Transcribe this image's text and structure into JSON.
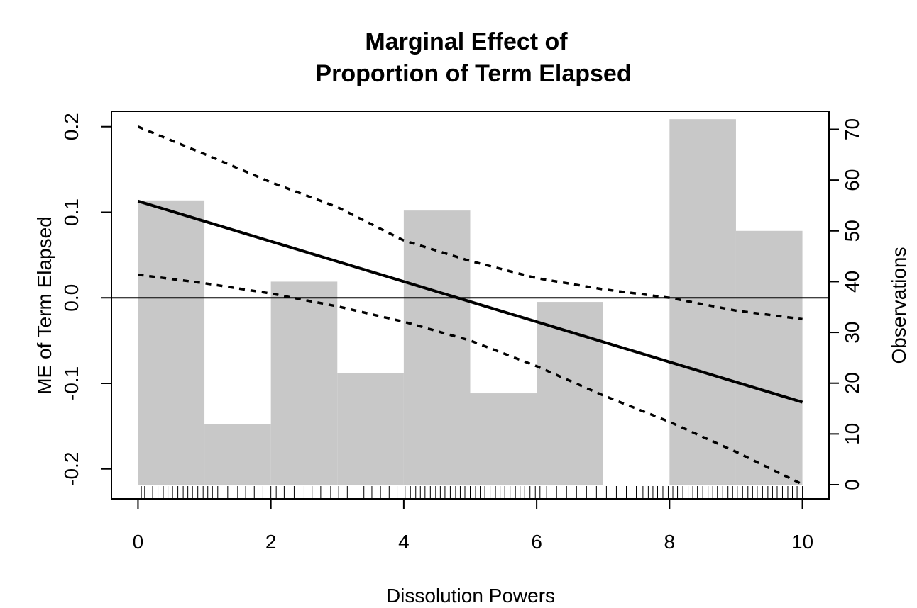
{
  "chart_data": {
    "type": "line",
    "title_lines": [
      "Marginal Effect of",
      "Proportion of Term Elapsed"
    ],
    "xlabel": "Dissolution Powers",
    "ylabel": "ME of Term Elapsed",
    "y2label": "Observations",
    "xlim": [
      -0.4,
      10.4
    ],
    "ylim": [
      -0.235,
      0.218
    ],
    "y2lim": [
      0,
      72
    ],
    "x_ticks": [
      0,
      2,
      4,
      6,
      8,
      10
    ],
    "y_ticks": [
      -0.2,
      -0.1,
      0.0,
      0.1,
      0.2
    ],
    "y2_ticks": [
      0,
      10,
      20,
      30,
      40,
      50,
      60,
      70
    ],
    "x_tick_labels": [
      "0",
      "2",
      "4",
      "6",
      "8",
      "10"
    ],
    "y_tick_labels": [
      "-0.2",
      "-0.1",
      "0.0",
      "0.1",
      "0.2"
    ],
    "y2_tick_labels": [
      "0",
      "10",
      "20",
      "30",
      "40",
      "50",
      "60",
      "70"
    ],
    "histogram": {
      "name": "Observations",
      "bins": [
        [
          0,
          1
        ],
        [
          1,
          2
        ],
        [
          2,
          3
        ],
        [
          3,
          4
        ],
        [
          4,
          5
        ],
        [
          5,
          6
        ],
        [
          6,
          7
        ],
        [
          7,
          8
        ],
        [
          8,
          9
        ],
        [
          9,
          10
        ]
      ],
      "counts": [
        56,
        12,
        40,
        22,
        54,
        18,
        36,
        0,
        72,
        50
      ],
      "color": "#c8c8c8"
    },
    "series": [
      {
        "role": "estimate",
        "style": "solid",
        "x": [
          0,
          10
        ],
        "y": [
          0.113,
          -0.122
        ]
      },
      {
        "role": "upper",
        "style": "dashed",
        "x": [
          0,
          1,
          2,
          3,
          4,
          5,
          6,
          7,
          8,
          9,
          10
        ],
        "y": [
          0.2,
          0.168,
          0.135,
          0.106,
          0.067,
          0.043,
          0.023,
          0.01,
          0.0,
          -0.015,
          -0.025
        ]
      },
      {
        "role": "lower",
        "style": "dashed",
        "x": [
          0,
          1,
          2,
          3,
          4,
          5,
          6,
          7,
          8,
          9,
          10
        ],
        "y": [
          0.027,
          0.017,
          0.005,
          -0.01,
          -0.028,
          -0.05,
          -0.08,
          -0.114,
          -0.145,
          -0.18,
          -0.218
        ]
      }
    ],
    "reference_line": {
      "y": 0
    },
    "rug_x": [
      0.05,
      0.1,
      0.15,
      0.22,
      0.3,
      0.38,
      0.45,
      0.52,
      0.6,
      0.68,
      0.75,
      0.82,
      0.9,
      0.98,
      1.05,
      1.12,
      1.2,
      1.35,
      1.5,
      1.62,
      1.75,
      1.88,
      2.0,
      2.08,
      2.2,
      2.35,
      2.5,
      2.62,
      2.75,
      2.9,
      3.02,
      3.15,
      3.28,
      3.4,
      3.52,
      3.65,
      3.78,
      3.9,
      4.02,
      4.1,
      4.18,
      4.25,
      4.32,
      4.4,
      4.48,
      4.55,
      4.62,
      4.7,
      4.78,
      4.85,
      4.92,
      5.0,
      5.08,
      5.15,
      5.22,
      5.3,
      5.38,
      5.45,
      5.52,
      5.6,
      5.68,
      5.75,
      5.82,
      5.9,
      5.98,
      6.05,
      6.15,
      6.3,
      6.45,
      6.6,
      6.75,
      6.9,
      7.05,
      7.2,
      7.35,
      7.5,
      7.6,
      7.68,
      7.75,
      7.82,
      7.9,
      7.98,
      8.05,
      8.12,
      8.2,
      8.28,
      8.35,
      8.42,
      8.5,
      8.58,
      8.65,
      8.72,
      8.8,
      8.88,
      8.95,
      9.02,
      9.1,
      9.18,
      9.25,
      9.32,
      9.4,
      9.48,
      9.55,
      9.62,
      9.7,
      9.78,
      9.85,
      9.92,
      10.0
    ]
  }
}
